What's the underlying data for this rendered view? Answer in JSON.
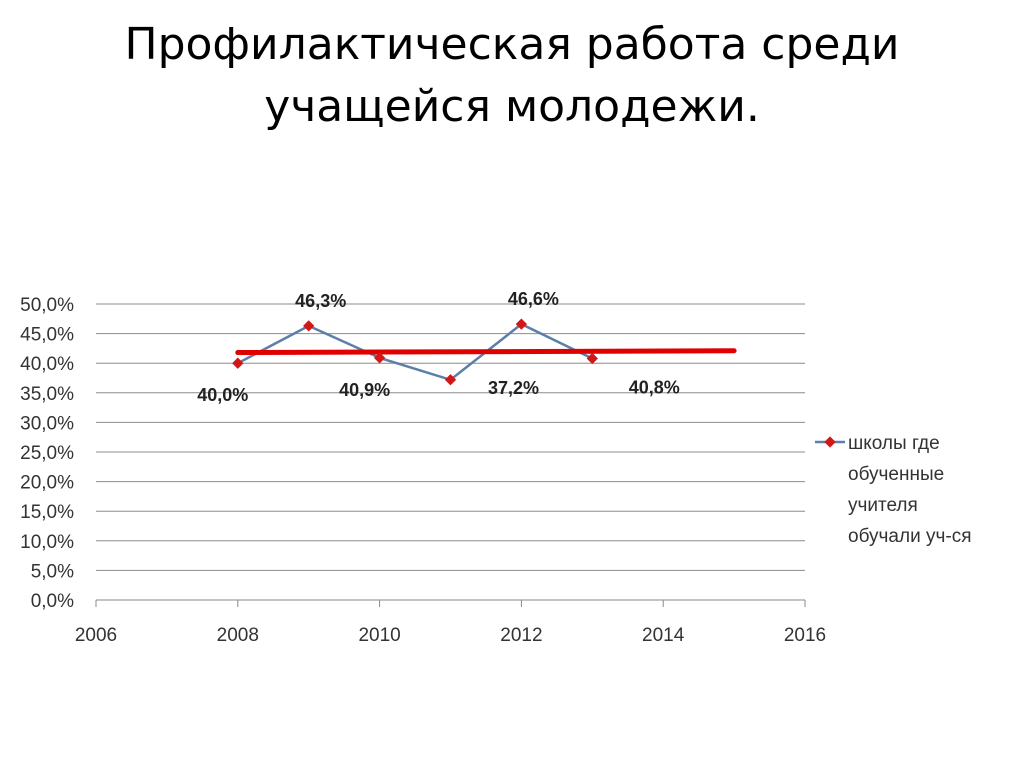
{
  "slide": {
    "title_line1": "Профилактическая работа среди",
    "title_line2": "учащейся молодежи."
  },
  "chart_data": {
    "type": "scatter",
    "xlim": [
      2006,
      2016
    ],
    "ylim": [
      0,
      50
    ],
    "x_ticks": [
      "2006",
      "2008",
      "2010",
      "2012",
      "2014",
      "2016"
    ],
    "y_ticks": [
      "0,0%",
      "5,0%",
      "10,0%",
      "15,0%",
      "20,0%",
      "25,0%",
      "30,0%",
      "35,0%",
      "40,0%",
      "45,0%",
      "50,0%"
    ],
    "grid": true,
    "legend_position": "right",
    "series": [
      {
        "name": "школы где обученные учителя обучали уч-ся",
        "legend_lines": [
          "школы где",
          "обученные",
          "учителя",
          "обучали уч-ся"
        ],
        "line_color": "#5b7fa8",
        "marker_color": "#d01818",
        "x": [
          2008,
          2009,
          2010,
          2011,
          2012,
          2013
        ],
        "y": [
          40.0,
          46.3,
          40.9,
          37.2,
          46.6,
          40.8
        ],
        "labels": [
          "40,0%",
          "46,3%",
          "40,9%",
          "37,2%",
          "46,6%",
          "40,8%"
        ],
        "label_positions": [
          "below",
          "above",
          "below",
          "right",
          "above",
          "below"
        ]
      }
    ],
    "trendline": {
      "color": "#e00000",
      "x": [
        2008,
        2015
      ],
      "y": [
        41.8,
        42.1
      ]
    }
  }
}
